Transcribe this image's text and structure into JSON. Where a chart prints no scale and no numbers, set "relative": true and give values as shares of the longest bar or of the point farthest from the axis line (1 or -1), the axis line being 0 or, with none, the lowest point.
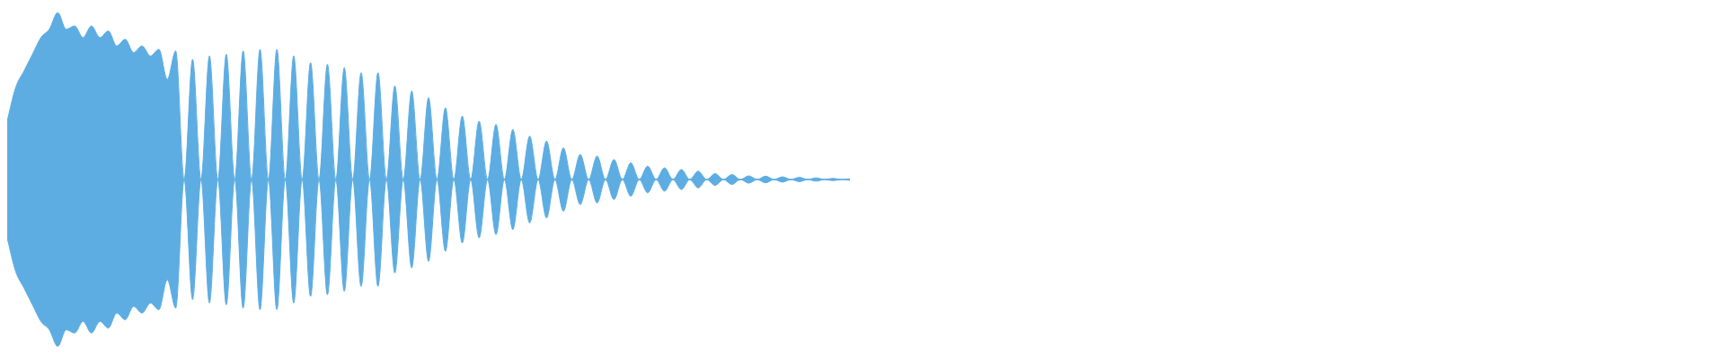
{
  "chart_data": {
    "type": "area",
    "relative": true,
    "ref_lines": [
      {
        "axis": "y",
        "value": 0,
        "color": "#5dade2"
      }
    ],
    "categories": [
      null,
      null,
      null,
      null,
      null,
      null,
      null,
      null,
      null,
      null,
      null,
      null,
      null,
      null,
      null,
      null,
      null,
      null,
      null,
      null,
      null,
      null,
      null,
      null,
      null,
      null,
      null,
      null,
      null,
      null,
      null,
      null,
      null,
      null,
      null,
      null,
      null,
      null,
      null,
      null,
      null,
      null,
      null,
      null,
      null,
      null,
      null,
      null,
      null,
      null,
      null,
      null,
      null,
      null,
      null,
      null,
      null,
      null,
      null,
      null,
      null,
      null,
      null,
      null,
      null,
      null,
      null,
      null,
      null,
      null,
      null,
      null,
      null,
      null,
      null,
      null,
      null,
      null,
      null,
      null,
      null,
      null,
      null,
      null,
      null,
      null,
      null,
      null,
      null,
      null,
      null,
      null,
      null,
      null,
      null,
      null,
      null,
      null,
      null,
      null,
      null
    ],
    "series": [
      {
        "color": "#5dade2",
        "values": [
          0.35,
          0.55,
          0.65,
          0.75,
          0.85,
          0.9,
          1,
          0.9,
          0.92,
          0.85,
          0.92,
          0.85,
          0.89,
          0.8,
          0.84,
          0.76,
          0.8,
          0.74,
          0.78,
          0.6,
          0.77,
          0,
          0.72,
          0,
          0.74,
          0,
          0.75,
          0,
          0.77,
          0,
          0.78,
          0,
          0.78,
          0,
          0.74,
          0,
          0.7,
          0,
          0.69,
          0,
          0.67,
          0,
          0.64,
          0,
          0.64,
          0,
          0.56,
          0,
          0.53,
          0,
          0.49,
          0,
          0.43,
          0,
          0.38,
          0,
          0.35,
          0,
          0.33,
          0,
          0.3,
          0,
          0.26,
          0,
          0.23,
          0,
          0.19,
          0,
          0.15,
          0,
          0.14,
          0,
          0.12,
          0,
          0.1,
          0,
          0.08,
          0,
          0.07,
          0,
          0.06,
          0,
          0.05,
          0,
          0.035,
          0,
          0.03,
          0,
          0.022,
          0,
          0.02,
          0,
          0.016,
          0,
          0.013,
          0,
          0.01,
          0,
          0.007,
          0,
          0.004
        ]
      },
      {
        "color": "#5dade2",
        "values": [
          -0.35,
          -0.55,
          -0.65,
          -0.75,
          -0.85,
          -0.9,
          -1,
          -0.9,
          -0.92,
          -0.85,
          -0.92,
          -0.85,
          -0.89,
          -0.8,
          -0.84,
          -0.76,
          -0.8,
          -0.74,
          -0.78,
          -0.6,
          -0.77,
          0,
          -0.72,
          0,
          -0.74,
          0,
          -0.75,
          0,
          -0.77,
          0,
          -0.78,
          0,
          -0.78,
          0,
          -0.74,
          0,
          -0.7,
          0,
          -0.69,
          0,
          -0.67,
          0,
          -0.64,
          0,
          -0.64,
          0,
          -0.56,
          0,
          -0.53,
          0,
          -0.49,
          0,
          -0.43,
          0,
          -0.38,
          0,
          -0.35,
          0,
          -0.33,
          0,
          -0.3,
          0,
          -0.26,
          0,
          -0.23,
          0,
          -0.19,
          0,
          -0.15,
          0,
          -0.14,
          0,
          -0.12,
          0,
          -0.1,
          0,
          -0.08,
          0,
          -0.07,
          0,
          -0.06,
          0,
          -0.05,
          0,
          -0.035,
          0,
          -0.03,
          0,
          -0.022,
          0,
          -0.02,
          0,
          -0.016,
          0,
          -0.013,
          0,
          -0.01,
          0,
          -0.007,
          0,
          -0.004
        ]
      }
    ]
  }
}
